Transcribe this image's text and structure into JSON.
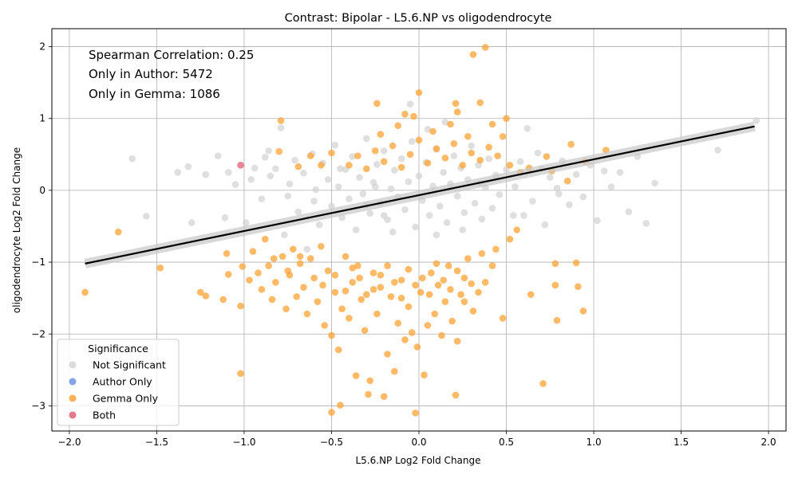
{
  "chart_data": {
    "type": "scatter",
    "title": "Contrast: Bipolar - L5.6.NP vs oligodendrocyte",
    "xlabel": "L5.6.NP Log2 Fold Change",
    "ylabel": "oligodendrocyte Log2 Fold Change",
    "xlim": [
      -2.1,
      2.1
    ],
    "ylim": [
      -3.35,
      2.25
    ],
    "xticks": [
      -2.0,
      -1.5,
      -1.0,
      -0.5,
      0.0,
      0.5,
      1.0,
      1.5,
      2.0
    ],
    "xtick_labels": [
      "−2.0",
      "−1.5",
      "−1.0",
      "−0.5",
      "0.0",
      "0.5",
      "1.0",
      "1.5",
      "2.0"
    ],
    "yticks": [
      2,
      1,
      0,
      -1,
      -2,
      -3
    ],
    "ytick_labels": [
      "2",
      "1",
      "0",
      "−1",
      "−2",
      "−3"
    ],
    "grid": true,
    "annotations": [
      "Spearman Correlation: 0.25",
      "Only in Author: 5472",
      "Only in Gemma: 1086"
    ],
    "legend": {
      "title": "Significance",
      "placement": "lower-left",
      "entries": [
        {
          "label": "Not Significant",
          "color": "#d3d3d3"
        },
        {
          "label": "Author Only",
          "color": "#6a8be0"
        },
        {
          "label": "Gemma Only",
          "color": "#ff9f2e"
        },
        {
          "label": "Both",
          "color": "#e0566f"
        }
      ]
    },
    "regression_line": {
      "x": [
        -1.91,
        1.92
      ],
      "y": [
        -1.02,
        0.89
      ],
      "color": "#000000"
    },
    "series": [
      {
        "name": "Not Significant",
        "color": "#d3d3d3",
        "points": [
          [
            -1.64,
            0.44
          ],
          [
            -1.56,
            -0.36
          ],
          [
            -1.38,
            0.25
          ],
          [
            -1.32,
            0.33
          ],
          [
            -1.3,
            -0.45
          ],
          [
            -1.22,
            0.22
          ],
          [
            -1.15,
            0.48
          ],
          [
            -1.11,
            -0.38
          ],
          [
            -1.09,
            0.25
          ],
          [
            -1.05,
            0.08
          ],
          [
            -0.99,
            -0.45
          ],
          [
            -0.96,
            0.15
          ],
          [
            -0.94,
            0.31
          ],
          [
            -0.9,
            -0.12
          ],
          [
            -0.88,
            0.46
          ],
          [
            -0.86,
            0.55
          ],
          [
            -0.82,
            0.3
          ],
          [
            -0.79,
            0.87
          ],
          [
            -0.77,
            -0.62
          ],
          [
            -0.74,
            0.09
          ],
          [
            -0.71,
            0.42
          ],
          [
            -0.69,
            -0.3
          ],
          [
            -0.66,
            0.24
          ],
          [
            -0.64,
            -0.82
          ],
          [
            -0.61,
            0.51
          ],
          [
            -0.59,
            0.01
          ],
          [
            -0.57,
            -0.48
          ],
          [
            -0.55,
            0.38
          ],
          [
            -0.52,
            0.15
          ],
          [
            -0.5,
            -0.22
          ],
          [
            -0.48,
            0.63
          ],
          [
            -0.46,
            0.05
          ],
          [
            -0.44,
            -0.38
          ],
          [
            -0.42,
            0.29
          ],
          [
            -0.4,
            -0.12
          ],
          [
            -0.38,
            0.47
          ],
          [
            -0.36,
            -0.55
          ],
          [
            -0.34,
            0.18
          ],
          [
            -0.32,
            -0.05
          ],
          [
            -0.3,
            0.72
          ],
          [
            -0.28,
            -0.32
          ],
          [
            -0.26,
            0.11
          ],
          [
            -0.24,
            0.36
          ],
          [
            -0.22,
            -0.18
          ],
          [
            -0.2,
            0.55
          ],
          [
            -0.18,
            -0.41
          ],
          [
            -0.16,
            0.02
          ],
          [
            -0.14,
            0.28
          ],
          [
            -0.12,
            -0.09
          ],
          [
            -0.1,
            0.44
          ],
          [
            -0.08,
            -0.27
          ],
          [
            -0.06,
            0.12
          ],
          [
            -0.04,
            0.68
          ],
          [
            -0.02,
            -0.51
          ],
          [
            0.0,
            0.2
          ],
          [
            0.02,
            -0.14
          ],
          [
            0.04,
            0.39
          ],
          [
            0.06,
            -0.35
          ],
          [
            0.08,
            0.06
          ],
          [
            0.1,
            0.57
          ],
          [
            0.12,
            -0.22
          ],
          [
            0.14,
            0.25
          ],
          [
            0.16,
            -0.45
          ],
          [
            0.18,
            0.09
          ],
          [
            0.2,
            0.48
          ],
          [
            0.22,
            -0.08
          ],
          [
            0.24,
            0.31
          ],
          [
            0.26,
            -0.31
          ],
          [
            0.28,
            0.15
          ],
          [
            0.3,
            0.62
          ],
          [
            0.32,
            -0.18
          ],
          [
            0.34,
            0.35
          ],
          [
            0.36,
            -0.4
          ],
          [
            0.38,
            0.04
          ],
          [
            0.4,
            0.44
          ],
          [
            0.42,
            -0.25
          ],
          [
            0.44,
            0.21
          ],
          [
            0.46,
            -0.06
          ],
          [
            0.5,
            0.29
          ],
          [
            0.54,
            -0.35
          ],
          [
            0.58,
            0.4
          ],
          [
            0.62,
            0.86
          ],
          [
            0.65,
            -0.15
          ],
          [
            0.68,
            0.52
          ],
          [
            0.72,
            -0.48
          ],
          [
            0.75,
            0.18
          ],
          [
            0.79,
            0.03
          ],
          [
            0.82,
            0.41
          ],
          [
            0.86,
            -0.2
          ],
          [
            0.9,
            0.22
          ],
          [
            0.94,
            -0.09
          ],
          [
            0.98,
            0.35
          ],
          [
            1.02,
            -0.42
          ],
          [
            1.06,
            0.27
          ],
          [
            1.1,
            0.05
          ],
          [
            1.15,
            0.25
          ],
          [
            1.2,
            -0.3
          ],
          [
            1.25,
            0.47
          ],
          [
            1.3,
            -0.46
          ],
          [
            1.35,
            0.1
          ],
          [
            1.71,
            0.56
          ],
          [
            1.93,
            0.97
          ],
          [
            -0.3,
            -0.2
          ],
          [
            -0.2,
            -0.35
          ],
          [
            0.1,
            -0.62
          ],
          [
            0.25,
            -0.55
          ],
          [
            -0.15,
            -0.58
          ],
          [
            0.05,
            0.85
          ],
          [
            -0.05,
            1.2
          ],
          [
            0.15,
            0.95
          ],
          [
            -0.25,
            0.05
          ],
          [
            0.35,
            0.1
          ],
          [
            -0.45,
            0.3
          ],
          [
            0.55,
            0.05
          ],
          [
            -0.6,
            -0.15
          ],
          [
            0.6,
            -0.35
          ],
          [
            -0.75,
            -0.08
          ],
          [
            0.7,
            0.3
          ],
          [
            -0.85,
            0.2
          ],
          [
            0.8,
            -0.05
          ]
        ]
      },
      {
        "name": "Author Only",
        "color": "#6a8be0",
        "points": []
      },
      {
        "name": "Gemma Only",
        "color": "#ff9f2e",
        "points": [
          [
            -1.91,
            -1.42
          ],
          [
            -1.72,
            -0.58
          ],
          [
            -1.48,
            -1.08
          ],
          [
            -1.25,
            -1.42
          ],
          [
            -1.22,
            -1.47
          ],
          [
            -1.12,
            -1.52
          ],
          [
            -1.1,
            -0.88
          ],
          [
            -1.09,
            -1.17
          ],
          [
            -1.02,
            -2.55
          ],
          [
            -1.02,
            -1.61
          ],
          [
            -1.01,
            -1.06
          ],
          [
            -0.97,
            -1.25
          ],
          [
            -0.95,
            -0.85
          ],
          [
            -0.92,
            -1.15
          ],
          [
            -0.9,
            -1.38
          ],
          [
            -0.88,
            -0.68
          ],
          [
            -0.86,
            -1.05
          ],
          [
            -0.84,
            -1.52
          ],
          [
            -0.82,
            -1.28
          ],
          [
            -0.8,
            0.54
          ],
          [
            -0.79,
            0.97
          ],
          [
            -0.78,
            -0.92
          ],
          [
            -0.76,
            -1.65
          ],
          [
            -0.74,
            -1.18
          ],
          [
            -0.72,
            -0.82
          ],
          [
            -0.7,
            -1.48
          ],
          [
            -0.68,
            -1.02
          ],
          [
            -0.66,
            -1.35
          ],
          [
            -0.64,
            -1.72
          ],
          [
            -0.62,
            -0.95
          ],
          [
            -0.6,
            -1.22
          ],
          [
            -0.58,
            -1.55
          ],
          [
            -0.56,
            -0.78
          ],
          [
            -0.54,
            -1.88
          ],
          [
            -0.52,
            -1.12
          ],
          [
            -0.5,
            -2.02
          ],
          [
            -0.5,
            -3.09
          ],
          [
            -0.48,
            -1.42
          ],
          [
            -0.46,
            -2.22
          ],
          [
            -0.45,
            -2.99
          ],
          [
            -0.44,
            -1.65
          ],
          [
            -0.42,
            -0.92
          ],
          [
            -0.4,
            -1.78
          ],
          [
            -0.38,
            -1.28
          ],
          [
            -0.36,
            -2.58
          ],
          [
            -0.35,
            -1.05
          ],
          [
            -0.33,
            -1.52
          ],
          [
            -0.31,
            -1.95
          ],
          [
            -0.29,
            -2.84
          ],
          [
            -0.28,
            -2.65
          ],
          [
            -0.26,
            -1.38
          ],
          [
            -0.24,
            -1.72
          ],
          [
            -0.22,
            -1.18
          ],
          [
            -0.2,
            -2.87
          ],
          [
            -0.18,
            -2.28
          ],
          [
            -0.16,
            -1.48
          ],
          [
            -0.14,
            -2.52
          ],
          [
            -0.12,
            -1.85
          ],
          [
            -0.1,
            -1.25
          ],
          [
            -0.08,
            -2.08
          ],
          [
            -0.06,
            -1.62
          ],
          [
            -0.04,
            -1.98
          ],
          [
            -0.02,
            -3.1
          ],
          [
            -0.01,
            -2.18
          ],
          [
            0.01,
            -1.42
          ],
          [
            0.03,
            -2.57
          ],
          [
            0.05,
            -1.88
          ],
          [
            0.07,
            -1.15
          ],
          [
            0.09,
            -1.72
          ],
          [
            0.11,
            -1.32
          ],
          [
            0.13,
            -2.02
          ],
          [
            0.15,
            -1.55
          ],
          [
            0.17,
            -1.05
          ],
          [
            0.19,
            -1.82
          ],
          [
            0.21,
            -2.85
          ],
          [
            0.22,
            -2.1
          ],
          [
            0.24,
            -1.45
          ],
          [
            0.26,
            -1.22
          ],
          [
            0.28,
            -0.95
          ],
          [
            0.31,
            -1.68
          ],
          [
            0.34,
            -1.42
          ],
          [
            0.36,
            -0.88
          ],
          [
            0.38,
            -1.28
          ],
          [
            0.42,
            -1.05
          ],
          [
            0.44,
            -0.82
          ],
          [
            0.48,
            -1.78
          ],
          [
            0.52,
            -0.68
          ],
          [
            0.56,
            -0.55
          ],
          [
            0.64,
            -1.45
          ],
          [
            0.71,
            -2.69
          ],
          [
            0.78,
            -1.32
          ],
          [
            0.79,
            -1.81
          ],
          [
            0.9,
            -1.01
          ],
          [
            0.91,
            -1.34
          ],
          [
            0.94,
            -1.68
          ],
          [
            0.78,
            -1.02
          ],
          [
            -0.83,
            -0.95
          ],
          [
            -0.75,
            -1.12
          ],
          [
            -0.68,
            -0.92
          ],
          [
            -0.55,
            -1.32
          ],
          [
            -0.48,
            -1.18
          ],
          [
            -0.42,
            -1.4
          ],
          [
            -0.38,
            -1.08
          ],
          [
            -0.34,
            -1.22
          ],
          [
            -0.3,
            -1.45
          ],
          [
            -0.26,
            -1.15
          ],
          [
            -0.22,
            -1.35
          ],
          [
            -0.18,
            -1.05
          ],
          [
            -0.14,
            -1.28
          ],
          [
            -0.1,
            -1.5
          ],
          [
            -0.06,
            -1.1
          ],
          [
            -0.02,
            -1.32
          ],
          [
            0.02,
            -1.22
          ],
          [
            0.06,
            -1.45
          ],
          [
            0.1,
            -1.02
          ],
          [
            0.14,
            -1.25
          ],
          [
            0.18,
            -1.38
          ],
          [
            0.22,
            -1.12
          ],
          [
            0.26,
            -1.55
          ],
          [
            0.3,
            -1.3
          ],
          [
            -0.4,
            0.35
          ],
          [
            -0.35,
            0.48
          ],
          [
            -0.3,
            0.3
          ],
          [
            -0.25,
            0.55
          ],
          [
            -0.2,
            0.4
          ],
          [
            -0.15,
            0.62
          ],
          [
            -0.1,
            0.32
          ],
          [
            -0.05,
            0.5
          ],
          [
            0.0,
            0.7
          ],
          [
            0.05,
            0.38
          ],
          [
            0.1,
            0.58
          ],
          [
            0.15,
            0.45
          ],
          [
            0.2,
            0.65
          ],
          [
            0.25,
            0.35
          ],
          [
            0.3,
            0.52
          ],
          [
            0.35,
            0.42
          ],
          [
            0.4,
            0.6
          ],
          [
            0.45,
            0.48
          ],
          [
            -0.22,
            0.78
          ],
          [
            -0.12,
            0.9
          ],
          [
            -0.03,
            1.03
          ],
          [
            0.08,
            0.82
          ],
          [
            0.18,
            0.92
          ],
          [
            0.28,
            0.75
          ],
          [
            -0.24,
            1.21
          ],
          [
            -0.08,
            1.06
          ],
          [
            0.0,
            1.36
          ],
          [
            0.21,
            1.21
          ],
          [
            0.22,
            1.09
          ],
          [
            0.35,
            1.22
          ],
          [
            0.31,
            1.89
          ],
          [
            0.38,
            1.99
          ],
          [
            0.42,
            0.92
          ],
          [
            0.5,
            1.0
          ],
          [
            0.48,
            0.75
          ],
          [
            -0.56,
            0.35
          ],
          [
            -0.5,
            0.52
          ],
          [
            -0.62,
            0.48
          ],
          [
            -0.69,
            0.33
          ],
          [
            0.52,
            0.35
          ],
          [
            0.58,
            0.25
          ],
          [
            0.63,
            0.31
          ],
          [
            0.73,
            0.47
          ],
          [
            0.87,
            0.64
          ],
          [
            0.95,
            0.4
          ],
          [
            1.07,
            0.56
          ],
          [
            0.76,
            0.27
          ],
          [
            0.85,
            0.13
          ]
        ]
      },
      {
        "name": "Both",
        "color": "#e0566f",
        "points": [
          [
            -1.02,
            0.35
          ]
        ]
      }
    ]
  }
}
